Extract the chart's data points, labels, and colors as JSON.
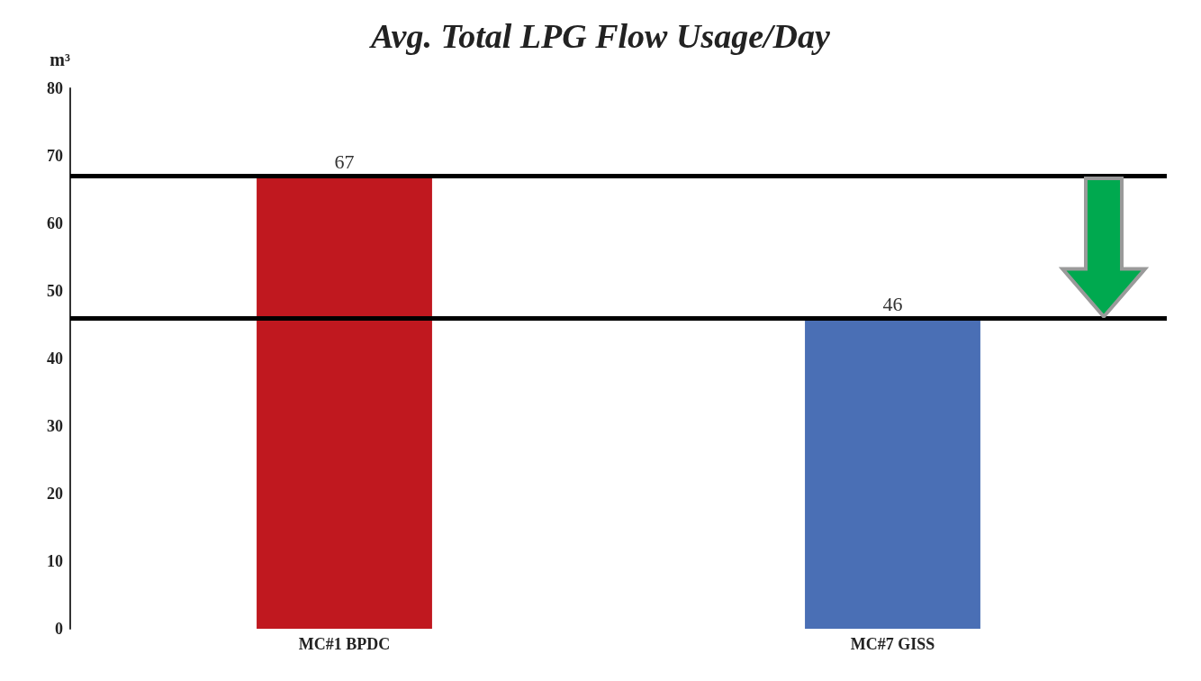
{
  "chart_data": {
    "type": "bar",
    "title": "Avg. Total LPG Flow Usage/Day",
    "ylabel": "m³",
    "categories": [
      "MC#1 BPDC",
      "MC#7 GISS"
    ],
    "values": [
      67,
      46
    ],
    "colors": [
      "#c0181f",
      "#4a6fb5"
    ],
    "ylim": [
      0,
      80
    ],
    "yticks": [
      0,
      10,
      20,
      30,
      40,
      50,
      60,
      70,
      80
    ],
    "grid": false,
    "data_labels": true,
    "ref_lines": [
      {
        "axis": "y",
        "value": 67,
        "color": "#000000",
        "line_style": "solid"
      },
      {
        "axis": "y",
        "value": 46,
        "color": "#000000",
        "line_style": "solid"
      }
    ]
  }
}
